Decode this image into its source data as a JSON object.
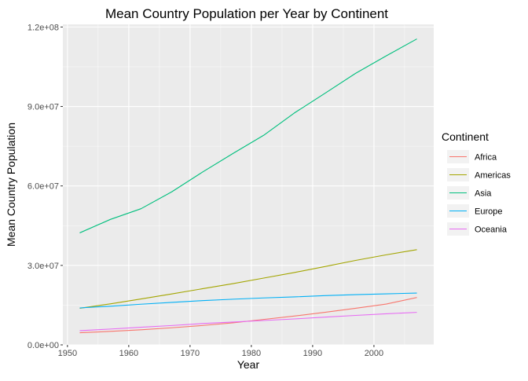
{
  "chart_data": {
    "type": "line",
    "title": "Mean Country Population per Year by Continent",
    "xlabel": "Year",
    "ylabel": "Mean Country Population",
    "xlim": [
      1949.25,
      2009.75
    ],
    "ylim": [
      0,
      121000000
    ],
    "x_ticks": [
      1950,
      1960,
      1970,
      1980,
      1990,
      2000
    ],
    "x_tick_labels": [
      "1950",
      "1960",
      "1970",
      "1980",
      "1990",
      "2000"
    ],
    "y_ticks": [
      0,
      30000000,
      60000000,
      90000000,
      120000000
    ],
    "y_tick_labels": [
      "0.0e+00",
      "3.0e+07",
      "6.0e+07",
      "9.0e+07",
      "1.2e+08"
    ],
    "grid": true,
    "legend": {
      "title": "Continent",
      "position": "right"
    },
    "x": [
      1952,
      1957,
      1962,
      1967,
      1972,
      1977,
      1982,
      1987,
      1992,
      1997,
      2002,
      2007
    ],
    "series": [
      {
        "name": "Africa",
        "color": "#F8766D",
        "values": [
          4570010,
          5093033,
          5702247,
          6447875,
          7305376,
          8328097,
          9602857,
          10870000,
          12290000,
          13810000,
          15400000,
          17880000
        ]
      },
      {
        "name": "Americas",
        "color": "#A3A500",
        "values": [
          13810000,
          15480000,
          17330000,
          19230000,
          21180000,
          23120000,
          25210000,
          27310000,
          29570000,
          31880000,
          33990000,
          35950000
        ]
      },
      {
        "name": "Asia",
        "color": "#00BF7D",
        "values": [
          42280000,
          47360000,
          51400000,
          57750000,
          65180000,
          72260000,
          79100000,
          87520000,
          94950000,
          102500000,
          109100000,
          115500000
        ]
      },
      {
        "name": "Europe",
        "color": "#00B0F6",
        "values": [
          13940000,
          14600000,
          15350000,
          16040000,
          16690000,
          17240000,
          17720000,
          18110000,
          18600000,
          18960000,
          19270000,
          19540000
        ]
      },
      {
        "name": "Oceania",
        "color": "#E76BF3",
        "values": [
          5343003,
          5970988,
          6641759,
          7300207,
          8053050,
          8619500,
          9197425,
          9787208,
          10460000,
          11120000,
          11730000,
          12270000
        ]
      }
    ]
  }
}
